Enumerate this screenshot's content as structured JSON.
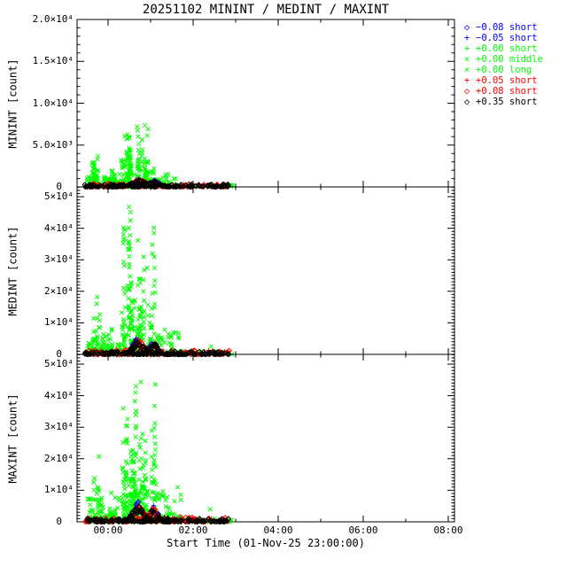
{
  "title": "20251102 MININT / MEDINT / MAXINT",
  "seed": 11,
  "legend": {
    "items": [
      {
        "symbol": "◇",
        "label": "−0.08 short",
        "color": "#0000ff"
      },
      {
        "symbol": "+",
        "label": "−0.05 short",
        "color": "#0000ff"
      },
      {
        "symbol": "+",
        "label": "+0.00 short",
        "color": "#00ff00"
      },
      {
        "symbol": "×",
        "label": "+0.00 middle",
        "color": "#00ff00"
      },
      {
        "symbol": "×",
        "label": "+0.00 long",
        "color": "#00ff00"
      },
      {
        "symbol": "+",
        "label": "+0.05 short",
        "color": "#ff0000"
      },
      {
        "symbol": "◇",
        "label": "+0.08 short",
        "color": "#ff0000"
      },
      {
        "symbol": "◇",
        "label": "+0.35 short",
        "color": "#000000"
      }
    ]
  },
  "chart_data": {
    "type": "scatter",
    "title": "20251102 MININT / MEDINT / MAXINT",
    "grid": false,
    "legend_position": "top-right",
    "x": {
      "label": "Start Time (01-Nov-25 23:00:00)",
      "unit": "hours after 01-Nov-25 23:00:00",
      "range": [
        0.27,
        9.146
      ],
      "major_ticks": [
        {
          "t": 1,
          "label": "00:00"
        },
        {
          "t": 3,
          "label": "02:00"
        },
        {
          "t": 5,
          "label": "04:00"
        },
        {
          "t": 7,
          "label": "06:00"
        },
        {
          "t": 9,
          "label": "08:00"
        }
      ],
      "minor_tick_hours": [
        2,
        4,
        6,
        8
      ]
    },
    "panels": [
      {
        "name": "MININT",
        "ylabel": "MININT [count]",
        "ylim": [
          0,
          20000
        ],
        "minor_step": 1000,
        "yticks": [
          {
            "v": 0,
            "label": "0"
          },
          {
            "v": 5000,
            "label": "5.0×10³"
          },
          {
            "v": 10000,
            "label": "1.0×10⁴"
          },
          {
            "v": 15000,
            "label": "1.5×10⁴"
          },
          {
            "v": 20000,
            "label": "2.0×10⁴"
          }
        ],
        "clusters": [
          {
            "series": "+0.00 middle/long",
            "color": "#00ff00",
            "markers": [
              "x"
            ],
            "profile": "streaks",
            "t": [
              0.55,
              0.8
            ],
            "vmax": 5000,
            "n": 30
          },
          {
            "series": "+0.00 middle/long",
            "color": "#00ff00",
            "markers": [
              "x"
            ],
            "profile": "streaks",
            "t": [
              0.82,
              1.18
            ],
            "vmax": 2200,
            "n": 30
          },
          {
            "series": "+0.00 middle/long",
            "color": "#00ff00",
            "markers": [
              "x"
            ],
            "profile": "streaks",
            "t": [
              1.32,
              1.62
            ],
            "vmax": 7400,
            "n": 72
          },
          {
            "series": "+0.00 middle/long",
            "color": "#00ff00",
            "markers": [
              "x"
            ],
            "profile": "streaks",
            "t": [
              1.63,
              2.08
            ],
            "vmax": 8000,
            "n": 84
          },
          {
            "series": "+0.00 middle/long",
            "color": "#00ff00",
            "markers": [
              "x"
            ],
            "profile": "band",
            "t": [
              0.5,
              2.65
            ],
            "vmax": 1500,
            "n": 140
          },
          {
            "series": "+0.00 middle/long",
            "color": "#00ff00",
            "markers": [
              "x"
            ],
            "profile": "band",
            "t": [
              2.65,
              3.95
            ],
            "vmax": 300,
            "n": 40
          },
          {
            "series": "+0.05/+0.08 short",
            "color": "#ff0000",
            "markers": [
              "+",
              "d"
            ],
            "profile": "band",
            "t": [
              0.45,
              3.85
            ],
            "vmax": 420,
            "n": 150
          },
          {
            "series": "+0.05/+0.08 short",
            "color": "#ff0000",
            "markers": [
              "+",
              "d"
            ],
            "profile": "bump",
            "t": [
              1.35,
              2.45
            ],
            "humps": [
              [
                1.72,
                0.2,
                820
              ],
              [
                2.1,
                0.14,
                640
              ]
            ],
            "n": 60
          },
          {
            "series": "−0.08/−0.05 short",
            "color": "#0000ff",
            "markers": [
              "d",
              "+"
            ],
            "profile": "bump",
            "t": [
              1.45,
              2.3
            ],
            "humps": [
              [
                1.72,
                0.2,
                950
              ],
              [
                2.1,
                0.14,
                730
              ]
            ],
            "top": 1,
            "n": 8
          },
          {
            "series": "+0.35 short",
            "color": "#000000",
            "markers": [
              "d"
            ],
            "profile": "band",
            "t": [
              0.45,
              3.85
            ],
            "vmax": 300,
            "n": 160
          },
          {
            "series": "+0.35 short",
            "color": "#000000",
            "markers": [
              "d"
            ],
            "profile": "bump",
            "t": [
              1.35,
              2.45
            ],
            "humps": [
              [
                1.72,
                0.2,
                760
              ],
              [
                2.1,
                0.14,
                600
              ]
            ],
            "n": 55
          }
        ]
      },
      {
        "name": "MEDINT",
        "ylabel": "MEDINT [count]",
        "ylim": [
          0,
          53100
        ],
        "minor_step": 1000,
        "yticks": [
          {
            "v": 0,
            "label": "0"
          },
          {
            "v": 10000,
            "label": "1×10⁴"
          },
          {
            "v": 20000,
            "label": "2×10⁴"
          },
          {
            "v": 30000,
            "label": "3×10⁴"
          },
          {
            "v": 40000,
            "label": "4×10⁴"
          },
          {
            "v": 50000,
            "label": "5×10⁴"
          }
        ],
        "clusters": [
          {
            "series": "+0.00 middle/long",
            "color": "#00ff00",
            "markers": [
              "x"
            ],
            "profile": "streaks",
            "t": [
              0.55,
              0.8
            ],
            "vmax": 19500,
            "n": 30
          },
          {
            "series": "+0.00 middle/long",
            "color": "#00ff00",
            "markers": [
              "x"
            ],
            "profile": "streaks",
            "t": [
              0.82,
              1.18
            ],
            "vmax": 6500,
            "n": 32
          },
          {
            "series": "+0.00 middle/long",
            "color": "#00ff00",
            "markers": [
              "x"
            ],
            "profile": "streaks",
            "t": [
              1.32,
              1.62
            ],
            "vmax": 48500,
            "n": 90
          },
          {
            "series": "+0.00 middle/long",
            "color": "#00ff00",
            "markers": [
              "x"
            ],
            "profile": "streaks",
            "t": [
              1.63,
              2.12
            ],
            "vmax": 42500,
            "n": 95
          },
          {
            "series": "+0.00 middle/long",
            "color": "#00ff00",
            "markers": [
              "x"
            ],
            "profile": "band",
            "t": [
              0.5,
              2.7
            ],
            "vmax": 8000,
            "n": 160
          },
          {
            "series": "+0.00 middle/long",
            "color": "#00ff00",
            "markers": [
              "x"
            ],
            "profile": "band",
            "t": [
              2.7,
              3.95
            ],
            "vmax": 1100,
            "n": 35
          },
          {
            "series": "+0.00 middle/long",
            "color": "#00ff00",
            "markers": [
              "x"
            ],
            "profile": "points",
            "pts": [
              [
                3.42,
                2500
              ]
            ]
          },
          {
            "series": "+0.05/+0.08 short",
            "color": "#ff0000",
            "markers": [
              "+",
              "d"
            ],
            "profile": "band",
            "t": [
              0.45,
              3.85
            ],
            "vmax": 1400,
            "n": 150
          },
          {
            "series": "+0.05/+0.08 short",
            "color": "#ff0000",
            "markers": [
              "+",
              "d"
            ],
            "profile": "bump",
            "t": [
              1.35,
              2.45
            ],
            "humps": [
              [
                1.7,
                0.18,
                4700
              ],
              [
                2.08,
                0.13,
                3700
              ]
            ],
            "n": 65
          },
          {
            "series": "−0.08/−0.05 short",
            "color": "#0000ff",
            "markers": [
              "d",
              "+"
            ],
            "profile": "bump",
            "t": [
              1.45,
              2.3
            ],
            "humps": [
              [
                1.7,
                0.18,
                5300
              ],
              [
                2.08,
                0.13,
                4200
              ]
            ],
            "top": 1,
            "n": 9
          },
          {
            "series": "+0.35 short",
            "color": "#000000",
            "markers": [
              "d"
            ],
            "profile": "band",
            "t": [
              0.45,
              3.85
            ],
            "vmax": 1000,
            "n": 160
          },
          {
            "series": "+0.35 short",
            "color": "#000000",
            "markers": [
              "d"
            ],
            "profile": "bump",
            "t": [
              1.35,
              2.45
            ],
            "humps": [
              [
                1.7,
                0.18,
                4300
              ],
              [
                2.08,
                0.13,
                3400
              ]
            ],
            "n": 60
          }
        ]
      },
      {
        "name": "MAXINT",
        "ylabel": "MAXINT [count]",
        "ylim": [
          0,
          53100
        ],
        "minor_step": 1000,
        "yticks": [
          {
            "v": 0,
            "label": "0"
          },
          {
            "v": 10000,
            "label": "1×10⁴"
          },
          {
            "v": 20000,
            "label": "2×10⁴"
          },
          {
            "v": 30000,
            "label": "3×10⁴"
          },
          {
            "v": 40000,
            "label": "4×10⁴"
          },
          {
            "v": 50000,
            "label": "5×10⁴"
          }
        ],
        "clusters": [
          {
            "series": "+0.00 middle/long",
            "color": "#00ff00",
            "markers": [
              "x"
            ],
            "profile": "streaks",
            "t": [
              0.55,
              0.8
            ],
            "vmax": 23000,
            "n": 32
          },
          {
            "series": "+0.00 middle/long",
            "color": "#00ff00",
            "markers": [
              "x"
            ],
            "profile": "streaks",
            "t": [
              0.82,
              1.18
            ],
            "vmax": 9000,
            "n": 34
          },
          {
            "series": "+0.00 middle/long",
            "color": "#00ff00",
            "markers": [
              "x"
            ],
            "profile": "streaks",
            "t": [
              1.32,
              1.62
            ],
            "vmax": 49000,
            "n": 95
          },
          {
            "series": "+0.00 middle/long",
            "color": "#00ff00",
            "markers": [
              "x"
            ],
            "profile": "streaks",
            "t": [
              1.63,
              2.12
            ],
            "vmax": 47000,
            "n": 100
          },
          {
            "series": "+0.00 middle/long",
            "color": "#00ff00",
            "markers": [
              "x"
            ],
            "profile": "band",
            "t": [
              0.5,
              2.75
            ],
            "vmax": 11000,
            "n": 180
          },
          {
            "series": "+0.00 middle/long",
            "color": "#00ff00",
            "markers": [
              "x"
            ],
            "profile": "band",
            "t": [
              2.75,
              3.95
            ],
            "vmax": 1200,
            "n": 35
          },
          {
            "series": "+0.00 middle/long",
            "color": "#00ff00",
            "markers": [
              "x"
            ],
            "profile": "points",
            "pts": [
              [
                3.4,
                4000
              ]
            ]
          },
          {
            "series": "+0.05/+0.08 short",
            "color": "#ff0000",
            "markers": [
              "+",
              "d"
            ],
            "profile": "band",
            "t": [
              0.45,
              3.85
            ],
            "vmax": 1500,
            "n": 150
          },
          {
            "series": "+0.05/+0.08 short",
            "color": "#ff0000",
            "markers": [
              "+",
              "d"
            ],
            "profile": "bump",
            "t": [
              1.35,
              2.45
            ],
            "humps": [
              [
                1.7,
                0.18,
                5200
              ],
              [
                2.08,
                0.13,
                4300
              ]
            ],
            "n": 70
          },
          {
            "series": "−0.08/−0.05 short",
            "color": "#0000ff",
            "markers": [
              "d",
              "+"
            ],
            "profile": "bump",
            "t": [
              1.45,
              2.3
            ],
            "humps": [
              [
                1.7,
                0.18,
                5800
              ],
              [
                2.08,
                0.13,
                4800
              ]
            ],
            "top": 1,
            "n": 10
          },
          {
            "series": "+0.35 short",
            "color": "#000000",
            "markers": [
              "d"
            ],
            "profile": "band",
            "t": [
              0.45,
              3.85
            ],
            "vmax": 1100,
            "n": 165
          },
          {
            "series": "+0.35 short",
            "color": "#000000",
            "markers": [
              "d"
            ],
            "profile": "bump",
            "t": [
              1.35,
              2.45
            ],
            "humps": [
              [
                1.7,
                0.18,
                4800
              ],
              [
                2.08,
                0.13,
                3900
              ]
            ],
            "n": 62
          }
        ]
      }
    ]
  }
}
